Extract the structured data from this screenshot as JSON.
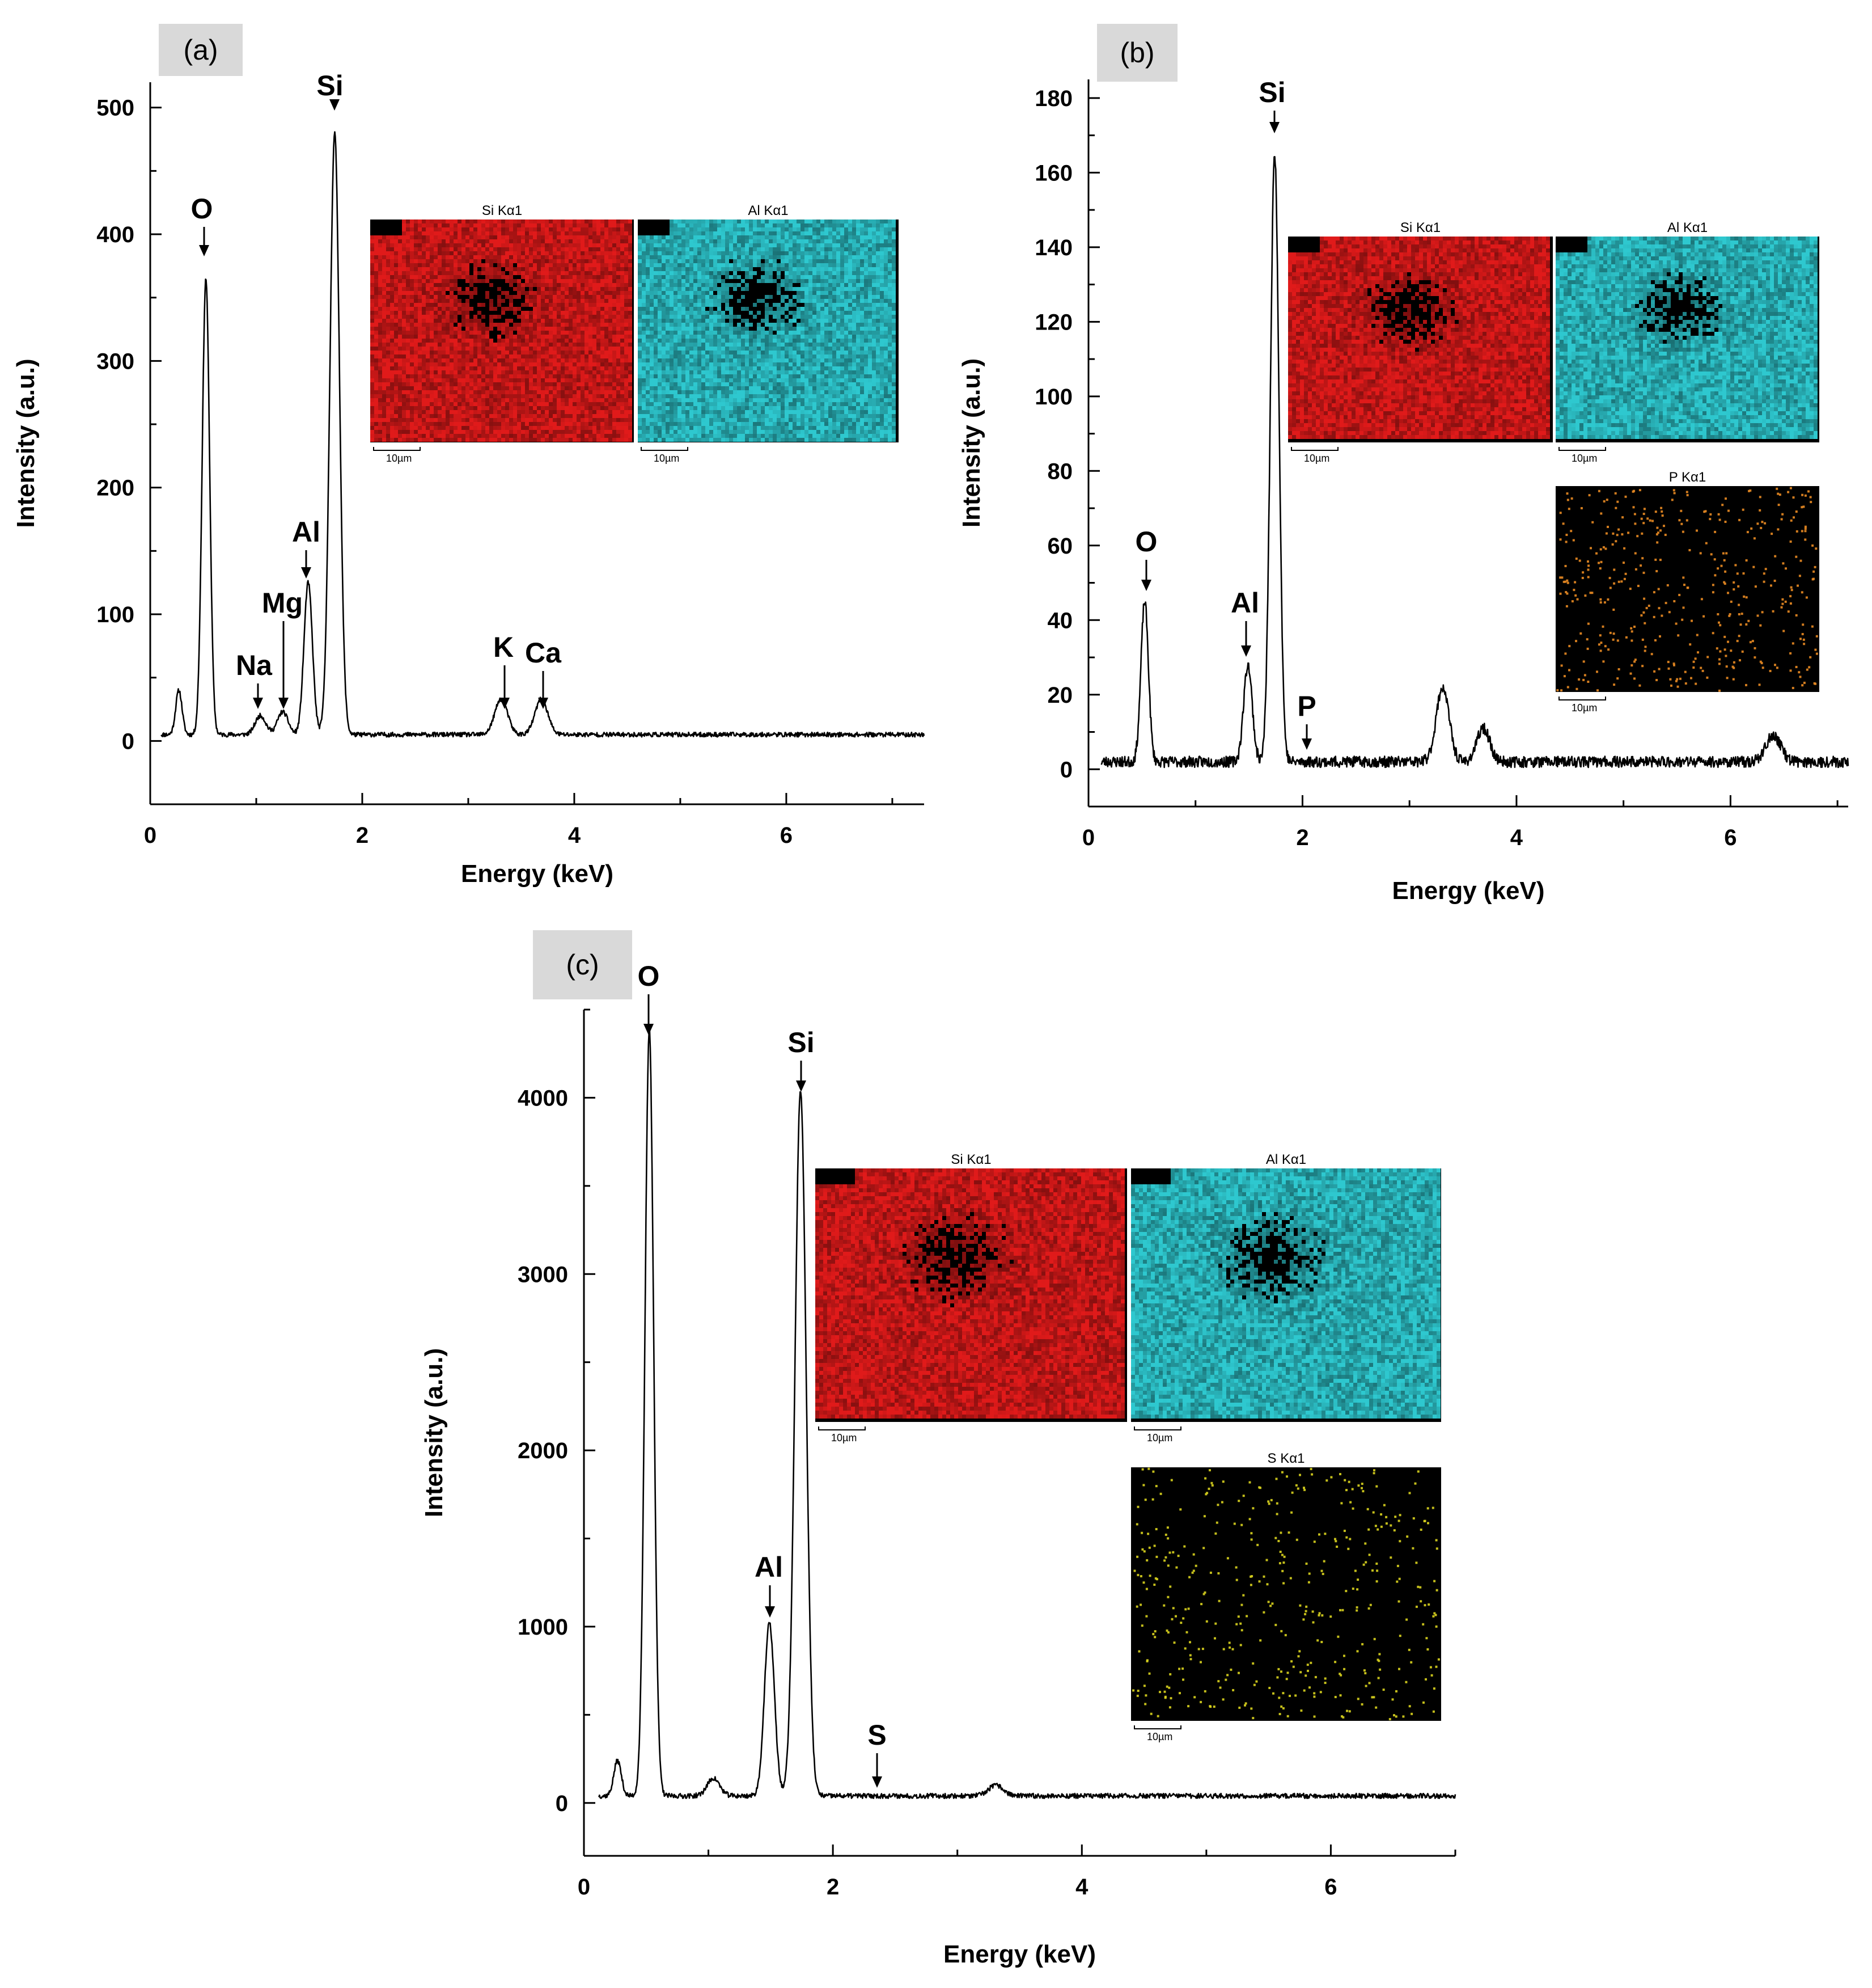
{
  "chart_data": [
    {
      "type": "line",
      "panel_label": "(a)",
      "xlabel": "Energy (keV)",
      "ylabel": "Intensity (a.u.)",
      "xlim": [
        0,
        7.3
      ],
      "ylim": [
        -50,
        520
      ],
      "xticks": [
        0,
        2,
        4,
        6
      ],
      "yticks": [
        0,
        100,
        200,
        300,
        400,
        500
      ],
      "baseline": 5,
      "peaks": [
        {
          "x": 0.27,
          "y": 35,
          "w": 0.03
        },
        {
          "x": 0.525,
          "y": 360,
          "w": 0.035
        },
        {
          "x": 1.04,
          "y": 15,
          "w": 0.05
        },
        {
          "x": 1.25,
          "y": 18,
          "w": 0.05
        },
        {
          "x": 1.49,
          "y": 120,
          "w": 0.04
        },
        {
          "x": 1.74,
          "y": 475,
          "w": 0.045
        },
        {
          "x": 3.31,
          "y": 28,
          "w": 0.06
        },
        {
          "x": 3.69,
          "y": 28,
          "w": 0.06
        }
      ],
      "annotations": [
        {
          "label": "O",
          "x": 0.525,
          "y": 360
        },
        {
          "label": "Na",
          "x": 1.04,
          "y": 15
        },
        {
          "label": "Mg",
          "x": 1.25,
          "y": 18
        },
        {
          "label": "Al",
          "x": 1.49,
          "y": 120
        },
        {
          "label": "Si",
          "x": 1.74,
          "y": 475
        },
        {
          "label": "K",
          "x": 3.31,
          "y": 28
        },
        {
          "label": "Ca",
          "x": 3.69,
          "y": 28
        }
      ],
      "maps": [
        {
          "title": "Si Kα1",
          "scale": "10µm",
          "color": "#e01a1a"
        },
        {
          "title": "Al Kα1",
          "scale": "10µm",
          "color": "#2ec8cf"
        }
      ]
    },
    {
      "type": "line",
      "panel_label": "(b)",
      "xlabel": "Energy (keV)",
      "ylabel": "Intensity (a.u.)",
      "xlim": [
        0,
        7.1
      ],
      "ylim": [
        -10,
        185
      ],
      "xticks": [
        0,
        2,
        4,
        6
      ],
      "yticks": [
        0,
        20,
        40,
        60,
        80,
        100,
        120,
        140,
        160,
        180
      ],
      "baseline": 2,
      "peaks": [
        {
          "x": 0.525,
          "y": 43,
          "w": 0.035
        },
        {
          "x": 1.49,
          "y": 26,
          "w": 0.04
        },
        {
          "x": 1.74,
          "y": 163,
          "w": 0.04
        },
        {
          "x": 3.31,
          "y": 20,
          "w": 0.06
        },
        {
          "x": 3.69,
          "y": 9,
          "w": 0.06
        },
        {
          "x": 6.4,
          "y": 7,
          "w": 0.07
        }
      ],
      "annotations": [
        {
          "label": "O",
          "x": 0.525,
          "y": 43
        },
        {
          "label": "Al",
          "x": 1.49,
          "y": 26
        },
        {
          "label": "Si",
          "x": 1.74,
          "y": 163
        },
        {
          "label": "P",
          "x": 2.01,
          "y": 2
        }
      ],
      "maps": [
        {
          "title": "Si Kα1",
          "scale": "10µm",
          "color": "#e01a1a"
        },
        {
          "title": "Al Kα1",
          "scale": "10µm",
          "color": "#2ec8cf"
        },
        {
          "title": "P Kα1",
          "scale": "10µm",
          "color": "#e88a22"
        }
      ]
    },
    {
      "type": "line",
      "panel_label": "(c)",
      "xlabel": "Energy (keV)",
      "ylabel": "Intensity (a.u.)",
      "xlim": [
        0,
        7.0
      ],
      "ylim": [
        -300,
        4500
      ],
      "xticks": [
        0,
        2,
        4,
        6
      ],
      "yticks": [
        0,
        1000,
        2000,
        3000,
        4000
      ],
      "baseline": 40,
      "peaks": [
        {
          "x": 0.27,
          "y": 200,
          "w": 0.03
        },
        {
          "x": 0.525,
          "y": 4350,
          "w": 0.035
        },
        {
          "x": 1.04,
          "y": 100,
          "w": 0.05
        },
        {
          "x": 1.49,
          "y": 980,
          "w": 0.04
        },
        {
          "x": 1.74,
          "y": 4000,
          "w": 0.045
        },
        {
          "x": 3.31,
          "y": 60,
          "w": 0.06
        }
      ],
      "annotations": [
        {
          "label": "O",
          "x": 0.525,
          "y": 4350
        },
        {
          "label": "Al",
          "x": 1.49,
          "y": 980
        },
        {
          "label": "Si",
          "x": 1.74,
          "y": 4000
        },
        {
          "label": "S",
          "x": 2.35,
          "y": 40
        }
      ],
      "maps": [
        {
          "title": "Si Kα1",
          "scale": "10µm",
          "color": "#e01a1a"
        },
        {
          "title": "Al Kα1",
          "scale": "10µm",
          "color": "#2ec8cf"
        },
        {
          "title": "S Kα1",
          "scale": "10µm",
          "color": "#d8d21e"
        }
      ]
    }
  ]
}
